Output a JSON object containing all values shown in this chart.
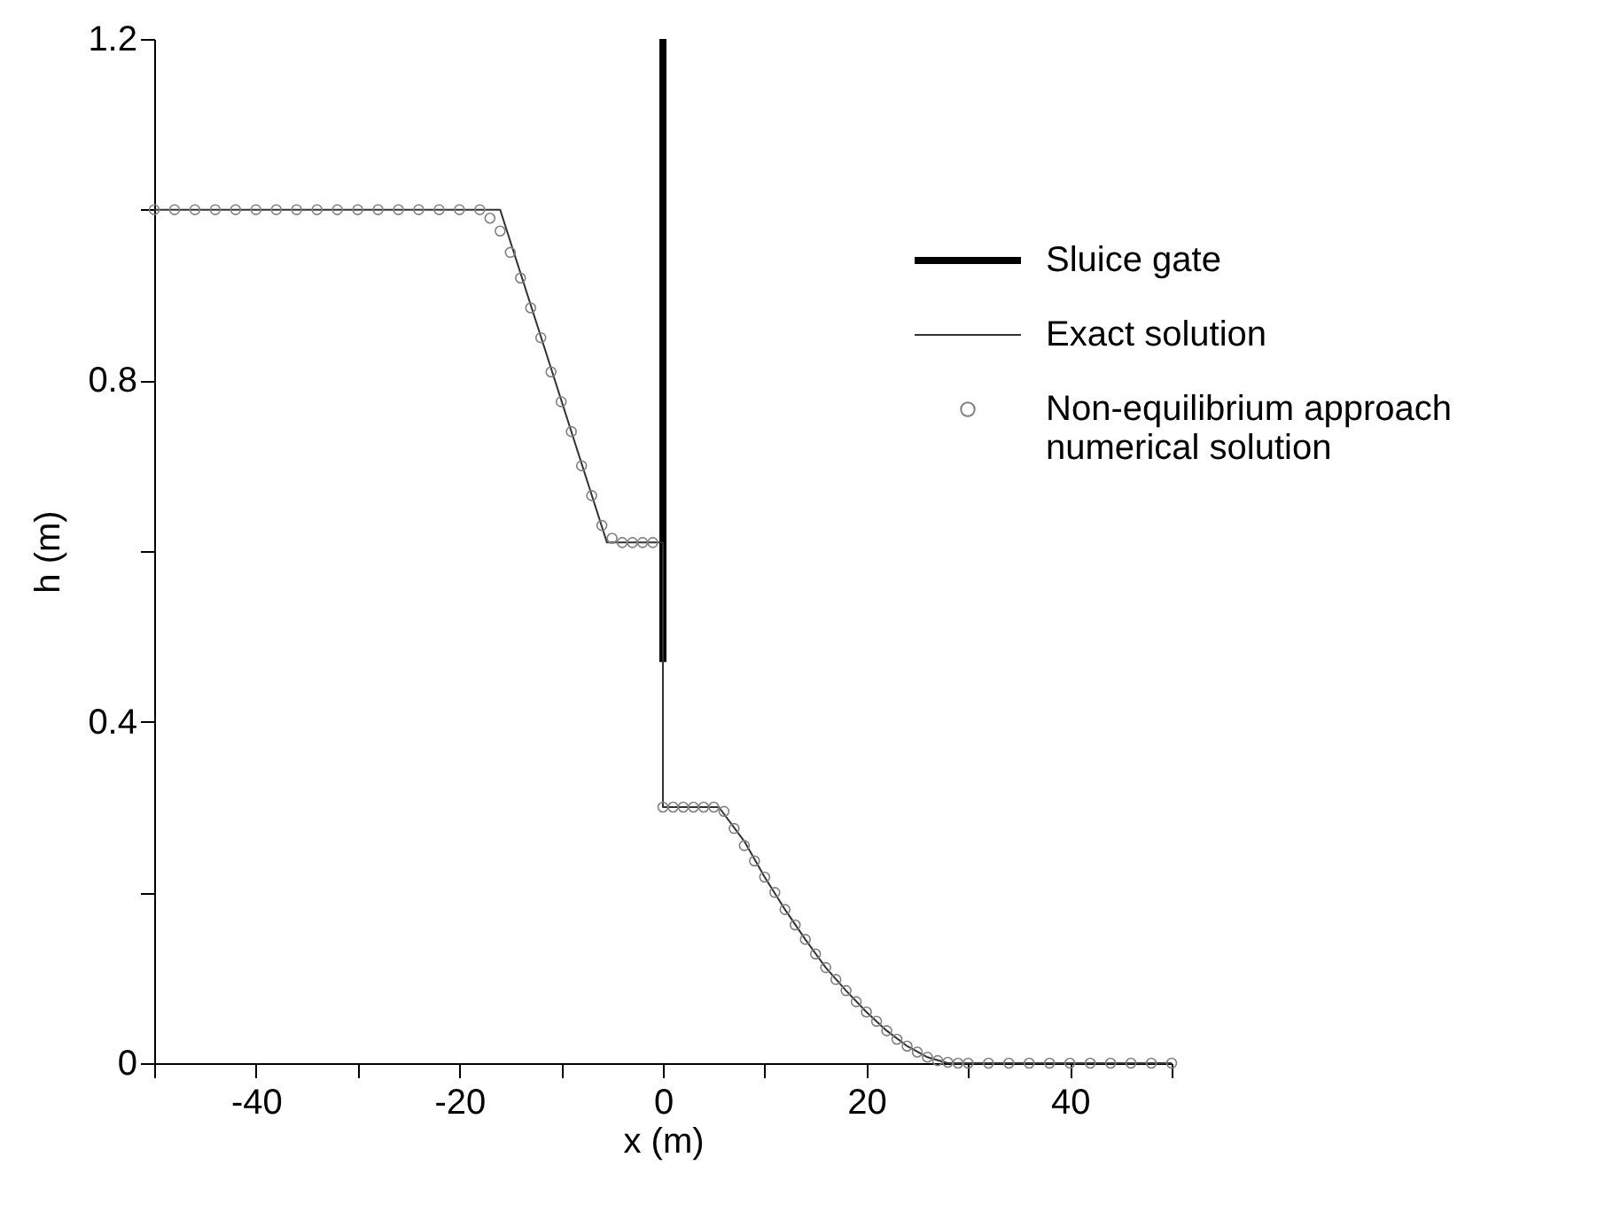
{
  "chart_data": {
    "type": "line",
    "xlabel": "x (m)",
    "ylabel": "h (m)",
    "xlim": [
      -50,
      50
    ],
    "ylim": [
      0,
      1.2
    ],
    "xticks": [
      {
        "value": -50,
        "label": null
      },
      -40,
      {
        "value": -30,
        "label": null
      },
      -20,
      {
        "value": -10,
        "label": null
      },
      0,
      {
        "value": 10,
        "label": null
      },
      20,
      {
        "value": 30,
        "label": null
      },
      40,
      {
        "value": 50,
        "label": null
      }
    ],
    "yticks": [
      0,
      {
        "value": 0.2,
        "label": null
      },
      0.4,
      {
        "value": 0.6,
        "label": null
      },
      0.8,
      {
        "value": 1.0,
        "label": null
      },
      1.2
    ],
    "legend": "top right",
    "series": [
      {
        "name": "Sluice gate",
        "type": "line",
        "color": "#000000",
        "x": [
          0,
          0
        ],
        "values": [
          0.47,
          1.2
        ]
      },
      {
        "name": "Exact solution",
        "type": "line",
        "color": "#333333",
        "x": [
          -50,
          -16,
          -5.5,
          0,
          0,
          5.5,
          8,
          10,
          12,
          14,
          16,
          18,
          20,
          22,
          24,
          26,
          28,
          50
        ],
        "values": [
          1,
          1,
          0.61,
          0.61,
          0.3,
          0.3,
          0.26,
          0.218,
          0.18,
          0.145,
          0.112,
          0.085,
          0.06,
          0.038,
          0.02,
          0.007,
          0,
          0
        ]
      },
      {
        "name": "Non-equilibrium approach numerical solution",
        "type": "scatter",
        "marker": "circle",
        "color": "#808080",
        "x": [
          -50,
          -48,
          -46,
          -44,
          -42,
          -40,
          -38,
          -36,
          -34,
          -32,
          -30,
          -28,
          -26,
          -24,
          -22,
          -20,
          -18,
          -17,
          -16,
          -15,
          -14,
          -13,
          -12,
          -11,
          -10,
          -9,
          -8,
          -7,
          -6,
          -5,
          -4,
          -3,
          -2,
          -1,
          0,
          1,
          2,
          3,
          4,
          5,
          6,
          7,
          8,
          9,
          10,
          11,
          12,
          13,
          14,
          15,
          16,
          17,
          18,
          19,
          20,
          21,
          22,
          23,
          24,
          25,
          26,
          27,
          28,
          29,
          30,
          32,
          34,
          36,
          38,
          40,
          42,
          44,
          46,
          48,
          50
        ],
        "values": [
          1,
          1,
          1,
          1,
          1,
          1,
          1,
          1,
          1,
          1,
          1,
          1,
          1,
          1,
          1,
          1,
          1,
          0.99,
          0.975,
          0.95,
          0.92,
          0.885,
          0.85,
          0.81,
          0.775,
          0.74,
          0.7,
          0.665,
          0.63,
          0.615,
          0.61,
          0.61,
          0.61,
          0.61,
          0.3,
          0.3,
          0.3,
          0.3,
          0.3,
          0.3,
          0.295,
          0.275,
          0.255,
          0.237,
          0.218,
          0.2,
          0.18,
          0.162,
          0.145,
          0.128,
          0.112,
          0.098,
          0.085,
          0.072,
          0.06,
          0.049,
          0.038,
          0.028,
          0.02,
          0.013,
          0.007,
          0.003,
          0.001,
          0,
          0,
          0,
          0,
          0,
          0,
          0,
          0,
          0,
          0,
          0,
          0
        ]
      }
    ]
  }
}
